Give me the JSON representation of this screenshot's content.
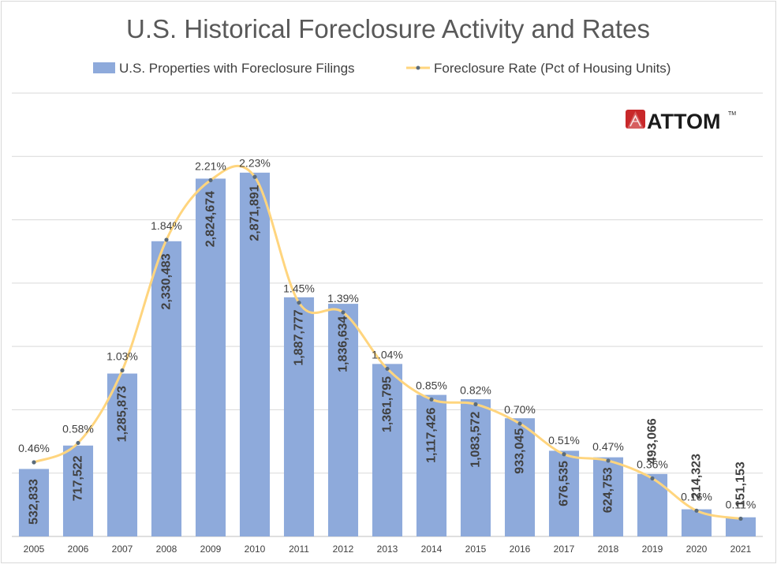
{
  "chart_data": {
    "type": "bar+line",
    "title": "U.S. Historical Foreclosure Activity and Rates",
    "brand": "ATTOM",
    "brand_mark": "TM",
    "categories": [
      "2005",
      "2006",
      "2007",
      "2008",
      "2009",
      "2010",
      "2011",
      "2012",
      "2013",
      "2014",
      "2015",
      "2016",
      "2017",
      "2018",
      "2019",
      "2020",
      "2021"
    ],
    "series": [
      {
        "name": "U.S. Properties with Foreclosure Filings",
        "kind": "bar",
        "color": "#8EAADB",
        "values": [
          532833,
          717522,
          1285873,
          2330483,
          2824674,
          2871891,
          1887777,
          1836634,
          1361795,
          1117426,
          1083572,
          933045,
          676535,
          624753,
          493066,
          214323,
          151153
        ],
        "labels": [
          "532,833",
          "717,522",
          "1,285,873",
          "2,330,483",
          "2,824,674",
          "2,871,891",
          "1,887,777",
          "1,836,634",
          "1,361,795",
          "1,117,426",
          "1,083,572",
          "933,045",
          "676,535",
          "624,753",
          "493,066",
          "214,323",
          "151,153"
        ]
      },
      {
        "name": "Foreclosure Rate (Pct of Housing Units)",
        "kind": "line",
        "color": "#FFD57E",
        "marker_color": "#5A6B7B",
        "values": [
          0.46,
          0.58,
          1.03,
          1.84,
          2.21,
          2.23,
          1.45,
          1.39,
          1.04,
          0.85,
          0.82,
          0.7,
          0.51,
          0.47,
          0.36,
          0.16,
          0.11
        ],
        "labels": [
          "0.46%",
          "0.58%",
          "1.03%",
          "1.84%",
          "2.21%",
          "2.23%",
          "1.45%",
          "1.39%",
          "1.04%",
          "0.85%",
          "0.82%",
          "0.70%",
          "0.51%",
          "0.47%",
          "0.36%",
          "0.16%",
          "0.11%"
        ]
      }
    ],
    "ylim_left": [
      0,
      3500000
    ],
    "ylim_right": [
      0,
      2.75
    ],
    "grid": true,
    "legend_position": "top"
  }
}
